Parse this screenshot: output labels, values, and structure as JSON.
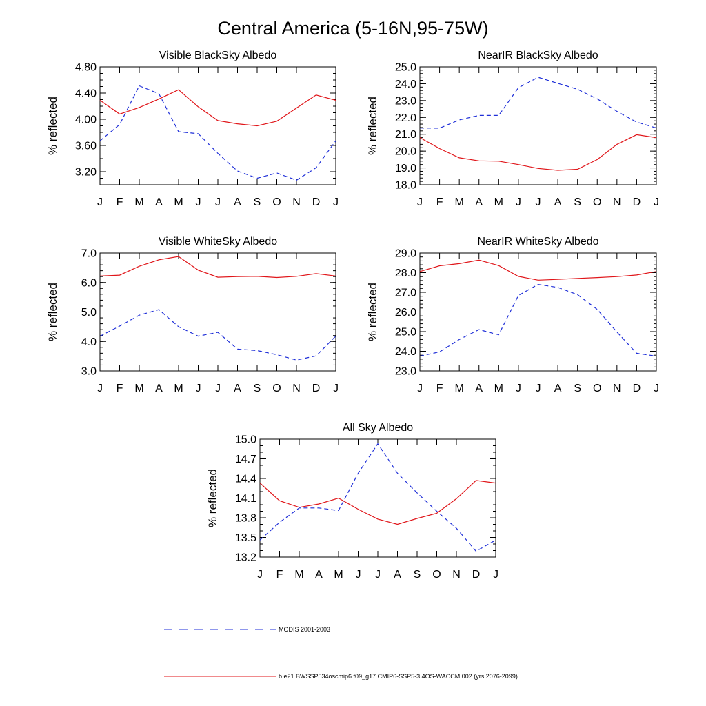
{
  "figure": {
    "title": "Central America (5-16N,95-75W)"
  },
  "legend": {
    "modis_label": "MODIS 2001-2003",
    "model_label": "b.e21.BWSSP534oscmip6.f09_g17.CMIP6-SSP5-3.4OS-WACCM.002 (yrs 2076-2099)"
  },
  "colors": {
    "model": "#e0161a",
    "modis": "#1f2fd8"
  },
  "chart_data": [
    {
      "type": "line",
      "title": "Visible BlackSky Albedo",
      "ylabel": "% reflected",
      "categories": [
        "J",
        "F",
        "M",
        "A",
        "M",
        "J",
        "J",
        "A",
        "S",
        "O",
        "N",
        "D",
        "J"
      ],
      "ylim": [
        3.0,
        4.8
      ],
      "yticks": [
        "3.20",
        "3.60",
        "4.00",
        "4.40",
        "4.80"
      ],
      "minor_step": 0.1,
      "series": [
        {
          "name": "b.e21.BWSSP534oscmip6.f09_g17.CMIP6-SSP5-3.4OS-WACCM.002 (yrs 2076-2099)",
          "style": "model",
          "values": [
            4.29,
            4.08,
            4.18,
            4.31,
            4.45,
            4.19,
            3.98,
            3.93,
            3.9,
            3.97,
            4.17,
            4.37,
            4.29
          ]
        },
        {
          "name": "MODIS 2001-2003",
          "style": "modis",
          "values": [
            3.67,
            3.92,
            4.51,
            4.39,
            3.81,
            3.78,
            3.48,
            3.21,
            3.1,
            3.18,
            3.07,
            3.26,
            3.67
          ]
        }
      ]
    },
    {
      "type": "line",
      "title": "NearIR BlackSky Albedo",
      "ylabel": "% reflected",
      "categories": [
        "J",
        "F",
        "M",
        "A",
        "M",
        "J",
        "J",
        "A",
        "S",
        "O",
        "N",
        "D",
        "J"
      ],
      "ylim": [
        18.0,
        25.0
      ],
      "yticks": [
        "18.0",
        "19.0",
        "20.0",
        "21.0",
        "22.0",
        "23.0",
        "24.0",
        "25.0"
      ],
      "minor_step": 0.2,
      "series": [
        {
          "name": "b.e21.BWSSP534oscmip6.f09_g17.CMIP6-SSP5-3.4OS-WACCM.002 (yrs 2076-2099)",
          "style": "model",
          "values": [
            20.8,
            20.15,
            19.6,
            19.42,
            19.4,
            19.2,
            18.97,
            18.86,
            18.92,
            19.5,
            20.4,
            20.97,
            20.8
          ]
        },
        {
          "name": "MODIS 2001-2003",
          "style": "modis",
          "values": [
            21.37,
            21.36,
            21.85,
            22.12,
            22.12,
            23.76,
            24.38,
            24.02,
            23.67,
            23.1,
            22.36,
            21.72,
            21.37
          ]
        }
      ]
    },
    {
      "type": "line",
      "title": "Visible WhiteSky Albedo",
      "ylabel": "% reflected",
      "categories": [
        "J",
        "F",
        "M",
        "A",
        "M",
        "J",
        "J",
        "A",
        "S",
        "O",
        "N",
        "D",
        "J"
      ],
      "ylim": [
        3.0,
        7.0
      ],
      "yticks": [
        "3.0",
        "4.0",
        "5.0",
        "6.0",
        "7.0"
      ],
      "minor_step": 0.2,
      "series": [
        {
          "name": "b.e21.BWSSP534oscmip6.f09_g17.CMIP6-SSP5-3.4OS-WACCM.002 (yrs 2076-2099)",
          "style": "model",
          "values": [
            6.22,
            6.25,
            6.55,
            6.77,
            6.88,
            6.42,
            6.18,
            6.2,
            6.21,
            6.17,
            6.21,
            6.3,
            6.22
          ]
        },
        {
          "name": "MODIS 2001-2003",
          "style": "modis",
          "values": [
            4.18,
            4.52,
            4.89,
            5.08,
            4.5,
            4.18,
            4.31,
            3.74,
            3.69,
            3.55,
            3.37,
            3.51,
            4.18
          ]
        }
      ]
    },
    {
      "type": "line",
      "title": "NearIR WhiteSky Albedo",
      "ylabel": "% reflected",
      "categories": [
        "J",
        "F",
        "M",
        "A",
        "M",
        "J",
        "J",
        "A",
        "S",
        "O",
        "N",
        "D",
        "J"
      ],
      "ylim": [
        23.0,
        29.0
      ],
      "yticks": [
        "23.0",
        "24.0",
        "25.0",
        "26.0",
        "27.0",
        "28.0",
        "29.0"
      ],
      "minor_step": 0.2,
      "series": [
        {
          "name": "b.e21.BWSSP534oscmip6.f09_g17.CMIP6-SSP5-3.4OS-WACCM.002 (yrs 2076-2099)",
          "style": "model",
          "values": [
            28.06,
            28.35,
            28.46,
            28.64,
            28.36,
            27.81,
            27.62,
            27.66,
            27.71,
            27.75,
            27.8,
            27.88,
            28.06
          ]
        },
        {
          "name": "MODIS 2001-2003",
          "style": "modis",
          "values": [
            23.75,
            23.97,
            24.6,
            25.1,
            24.84,
            26.84,
            27.4,
            27.25,
            26.88,
            26.13,
            24.98,
            23.9,
            23.75
          ]
        }
      ]
    },
    {
      "type": "line",
      "title": "All Sky Albedo",
      "ylabel": "% reflected",
      "categories": [
        "J",
        "F",
        "M",
        "A",
        "M",
        "J",
        "J",
        "A",
        "S",
        "O",
        "N",
        "D",
        "J"
      ],
      "ylim": [
        13.2,
        15.0
      ],
      "yticks": [
        "13.2",
        "13.5",
        "13.8",
        "14.1",
        "14.4",
        "14.7",
        "15.0"
      ],
      "minor_step": 0.1,
      "series": [
        {
          "name": "b.e21.BWSSP534oscmip6.f09_g17.CMIP6-SSP5-3.4OS-WACCM.002 (yrs 2076-2099)",
          "style": "model",
          "values": [
            14.33,
            14.06,
            13.96,
            14.01,
            14.1,
            13.93,
            13.78,
            13.7,
            13.79,
            13.87,
            14.09,
            14.37,
            14.33
          ]
        },
        {
          "name": "MODIS 2001-2003",
          "style": "modis",
          "values": [
            13.46,
            13.73,
            13.95,
            13.95,
            13.91,
            14.48,
            14.93,
            14.48,
            14.18,
            13.9,
            13.64,
            13.29,
            13.46
          ]
        }
      ]
    }
  ]
}
